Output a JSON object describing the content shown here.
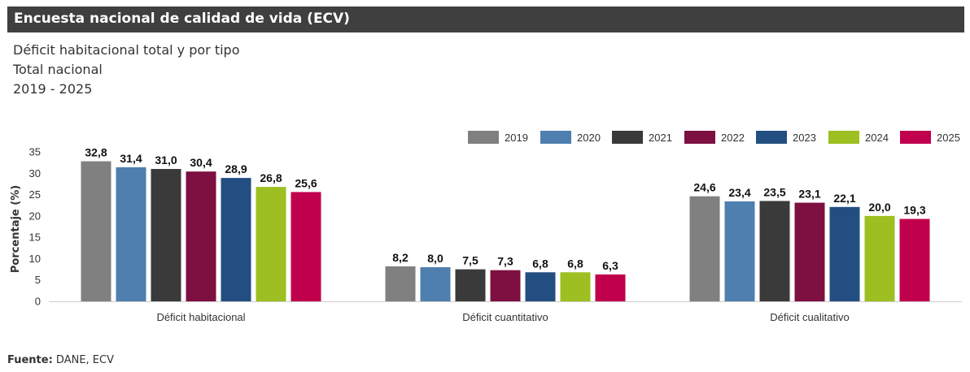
{
  "header": {
    "title": "Encuesta nacional de calidad de vida (ECV)"
  },
  "subtitle": {
    "line1": "Déficit habitacional total y por tipo",
    "line2": "Total nacional",
    "line3": "2019 - 2025"
  },
  "source": {
    "label": "Fuente:",
    "text": " DANE, ECV"
  },
  "chart_data": {
    "type": "bar",
    "ylabel": "Porcentaje (%)",
    "ylim": [
      0,
      35
    ],
    "yticks": [
      0,
      5,
      10,
      15,
      20,
      25,
      30,
      35
    ],
    "categories": [
      "Déficit habitacional",
      "Déficit cuantitativo",
      "Déficit cualitativo"
    ],
    "legend_position": "top-right",
    "grid": false,
    "series": [
      {
        "name": "2019",
        "color": "#808080",
        "values": [
          32.8,
          8.2,
          24.6
        ],
        "labels": [
          "32,8",
          "8,2",
          "24,6"
        ]
      },
      {
        "name": "2020",
        "color": "#4e7fae",
        "values": [
          31.4,
          8.0,
          23.4
        ],
        "labels": [
          "31,4",
          "8,0",
          "23,4"
        ]
      },
      {
        "name": "2021",
        "color": "#3a3a3a",
        "values": [
          31.0,
          7.5,
          23.5
        ],
        "labels": [
          "31,0",
          "7,5",
          "23,5"
        ]
      },
      {
        "name": "2022",
        "color": "#7d1040",
        "values": [
          30.4,
          7.3,
          23.1
        ],
        "labels": [
          "30,4",
          "7,3",
          "23,1"
        ]
      },
      {
        "name": "2023",
        "color": "#234e82",
        "values": [
          28.9,
          6.8,
          22.1
        ],
        "labels": [
          "28,9",
          "6,8",
          "22,1"
        ]
      },
      {
        "name": "2024",
        "color": "#9dbf21",
        "values": [
          26.8,
          6.8,
          20.0
        ],
        "labels": [
          "26,8",
          "6,8",
          "20,0"
        ]
      },
      {
        "name": "2025",
        "color": "#c0004d",
        "values": [
          25.6,
          6.3,
          19.3
        ],
        "labels": [
          "25,6",
          "6,3",
          "19,3"
        ]
      }
    ]
  }
}
